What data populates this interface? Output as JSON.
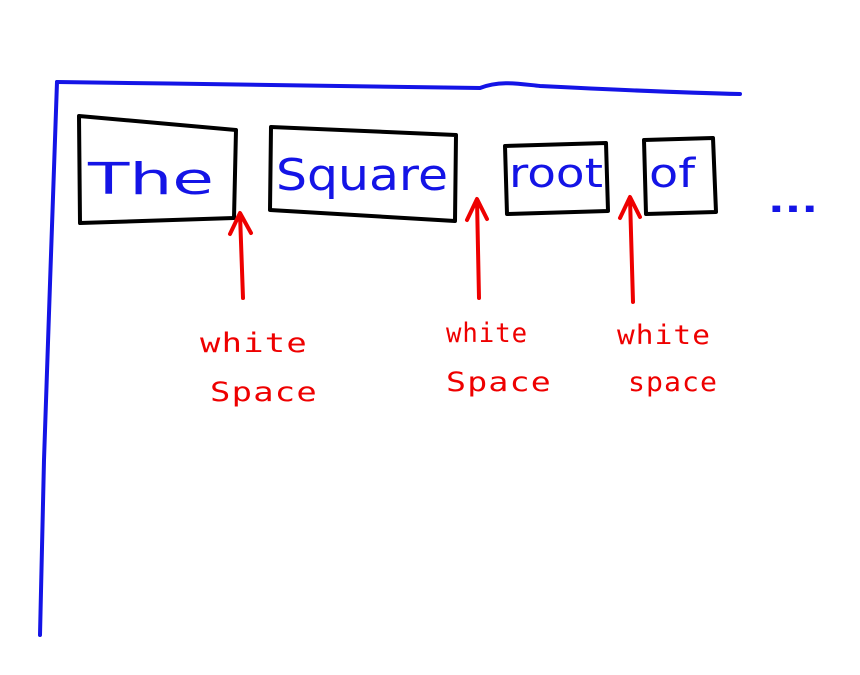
{
  "colors": {
    "frame": "#1414e6",
    "box_border": "#000000",
    "word_text": "#1414e6",
    "annotation": "#ee0000",
    "background": "#ffffff"
  },
  "words": [
    {
      "text": "The"
    },
    {
      "text": "Square"
    },
    {
      "text": "root"
    },
    {
      "text": "of"
    }
  ],
  "ellipsis": "...",
  "annotations": [
    {
      "line1": "white",
      "line2": "Space"
    },
    {
      "line1": "white",
      "line2": "Space"
    },
    {
      "line1": "white",
      "line2": "space"
    }
  ]
}
